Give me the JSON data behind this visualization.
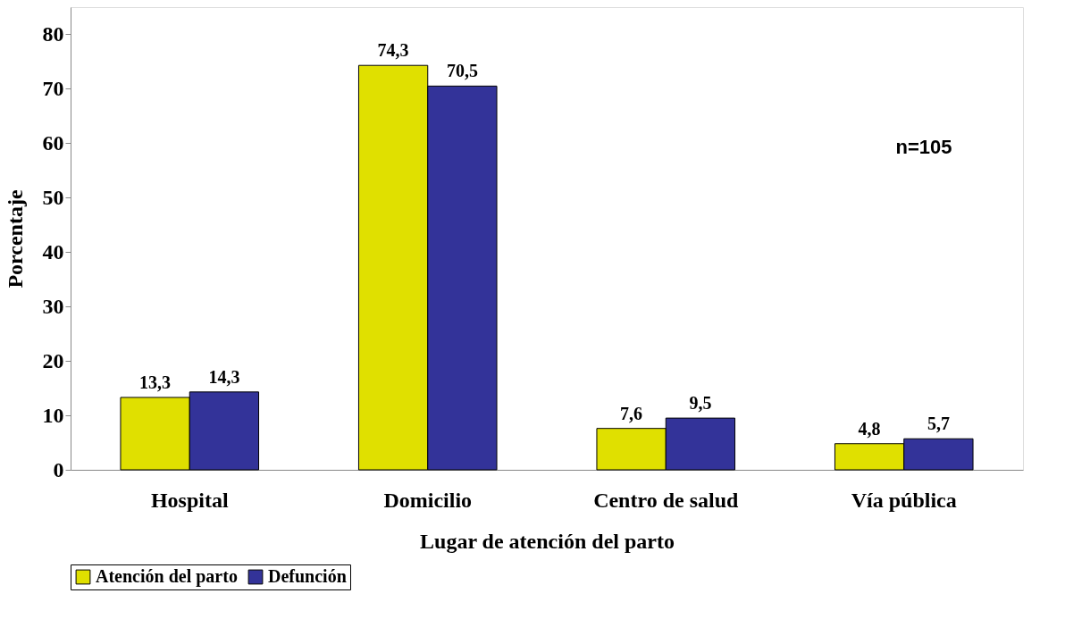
{
  "chart_data": {
    "type": "bar",
    "xlabel": "Lugar de atención del parto",
    "ylabel": "Porcentaje",
    "categories": [
      "Hospital",
      "Domicilio",
      "Centro de salud",
      "Vía pública"
    ],
    "series": [
      {
        "name": "Atención del parto",
        "color": "#e0e000",
        "values": [
          13.3,
          74.3,
          7.6,
          4.8
        ]
      },
      {
        "name": "Defunción",
        "color": "#333399",
        "values": [
          14.3,
          70.5,
          9.5,
          5.7
        ]
      }
    ],
    "ylim": [
      0,
      85
    ],
    "yticks": [
      0,
      10,
      20,
      30,
      40,
      50,
      60,
      70,
      80
    ],
    "value_labels": [
      [
        "13,3",
        "74,3",
        "7,6",
        "4,8"
      ],
      [
        "14,3",
        "70,5",
        "9,5",
        "5,7"
      ]
    ],
    "annotations": [
      "n=105"
    ],
    "legend": "bottom",
    "grid": false
  }
}
